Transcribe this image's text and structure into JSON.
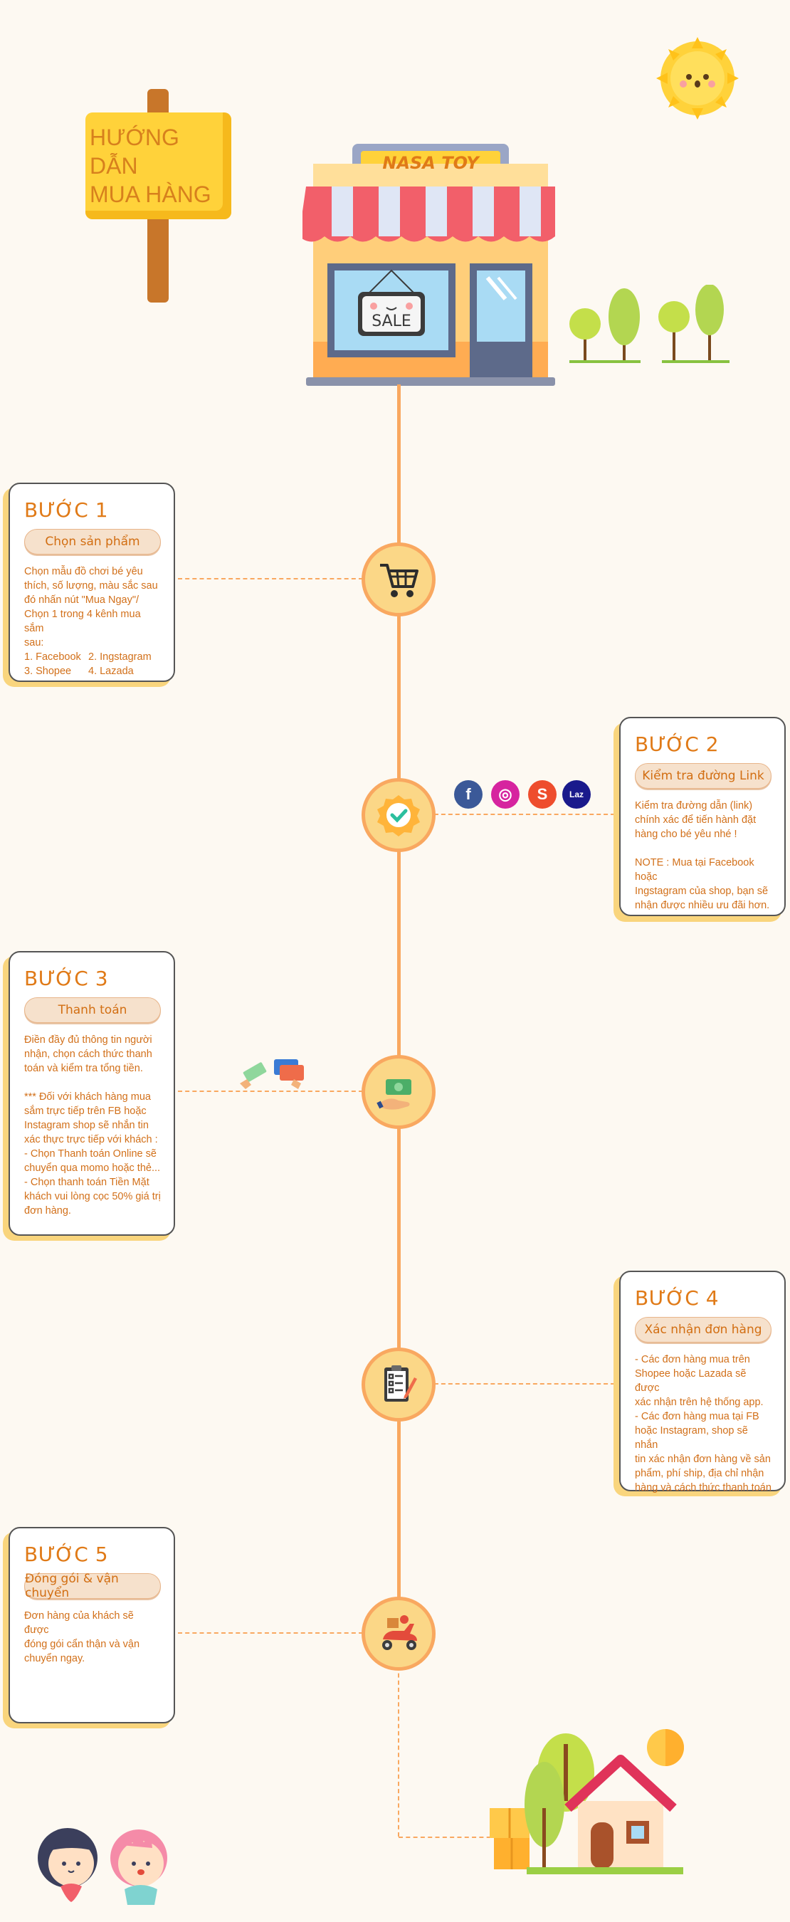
{
  "sign": {
    "line1": "HƯỚNG DẪN",
    "line2": "MUA HÀNG"
  },
  "store": {
    "name": "NASA TOY",
    "sale_label": "SALE"
  },
  "steps": [
    {
      "title": "BƯỚC 1",
      "subtitle": "Chọn sản phẩm",
      "lines": [
        "Chọn mẫu đồ chơi bé yêu",
        "thích, số lượng, màu sắc sau",
        "đó nhấn nút \"Mua Ngay\"/",
        "Chọn 1 trong 4 kênh mua sắm",
        "sau:"
      ],
      "channels": [
        "1. Facebook",
        "2. Ingstagram",
        "3. Shopee",
        "4. Lazada"
      ]
    },
    {
      "title": "BƯỚC 2",
      "subtitle": "Kiểm tra đường Link",
      "lines": [
        "Kiểm tra đường dẫn (link)",
        "chính xác để tiến hành đặt",
        "hàng cho bé yêu  nhé !",
        "",
        "NOTE : Mua tại Facebook hoặc",
        "Ingstagram của shop, bạn sẽ",
        "nhận được nhiều ưu đãi hơn."
      ]
    },
    {
      "title": "BƯỚC 3",
      "subtitle": "Thanh toán",
      "lines": [
        "Điền đầy đủ thông tin người",
        "nhận, chọn cách thức thanh",
        "toán và kiểm tra tổng tiền.",
        "",
        "*** Đối với khách hàng mua",
        "sắm trực tiếp trên FB hoặc",
        "Instagram shop sẽ nhắn tin",
        "xác thực trực tiếp với khách :",
        "- Chọn Thanh toán Online sẽ",
        "chuyển qua momo hoặc thẻ...",
        "- Chọn thanh toán Tiền Mặt",
        "khách vui lòng cọc 50% giá trị",
        "đơn hàng."
      ]
    },
    {
      "title": "BƯỚC 4",
      "subtitle": "Xác nhận đơn hàng",
      "lines": [
        "-  Các đơn hàng mua trên",
        "Shopee hoặc Lazada sẽ được",
        "xác nhận trên hệ thống app.",
        "-  Các đơn hàng mua tại FB",
        "hoặc Instagram, shop sẽ nhắn",
        "tin xác nhận đơn hàng về sản",
        "phẩm, phí ship, địa chỉ nhận",
        "hàng và cách thức thanh toán"
      ]
    },
    {
      "title": "BƯỚC 5",
      "subtitle": "Đóng gói & vận chuyển",
      "lines": [
        "Đơn hàng của khách sẽ được",
        "đóng gói cẩn thận và vận",
        "chuyển ngay."
      ]
    }
  ],
  "icons": {
    "step1": "shopping-cart-icon",
    "step2": "check-badge-icon",
    "step3": "money-hand-icon",
    "step4": "clipboard-checklist-icon",
    "step5": "delivery-scooter-icon"
  },
  "social": [
    {
      "name": "facebook-icon",
      "glyph": "f",
      "color": "#3b5998"
    },
    {
      "name": "instagram-icon",
      "glyph": "◎",
      "color": "#d6249f"
    },
    {
      "name": "shopee-icon",
      "glyph": "S",
      "color": "#ee4d2d"
    },
    {
      "name": "lazada-icon",
      "glyph": "Laz",
      "color": "#1a1a8c"
    }
  ],
  "colors": {
    "accent": "#f9a860",
    "text": "#d2701a",
    "background": "#fdf9f2",
    "title": "#e07a17"
  }
}
